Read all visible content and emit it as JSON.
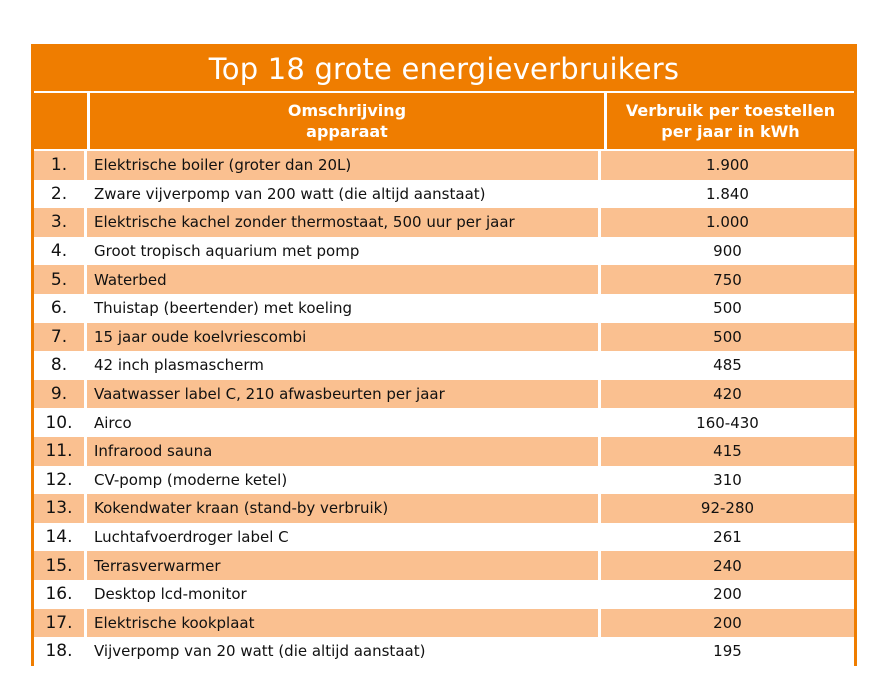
{
  "title": "Top 18 grote energieverbruikers",
  "header": {
    "col_desc_line1": "Omschrijving",
    "col_desc_line2": "apparaat",
    "col_val_line1": "Verbruik per toestellen",
    "col_val_line2": "per jaar in kWh"
  },
  "colors": {
    "accent": "#ef7d00",
    "stripe": "#fac090"
  },
  "rows": [
    {
      "num": "1.",
      "desc": "Elektrische boiler (groter dan 20L)",
      "val": "1.900"
    },
    {
      "num": "2.",
      "desc": "Zware vijverpomp van 200 watt (die altijd aanstaat)",
      "val": "1.840"
    },
    {
      "num": "3.",
      "desc": "Elektrische kachel zonder thermostaat, 500 uur per jaar",
      "val": "1.000"
    },
    {
      "num": "4.",
      "desc": "Groot tropisch aquarium met pomp",
      "val": "900"
    },
    {
      "num": "5.",
      "desc": "Waterbed",
      "val": "750"
    },
    {
      "num": "6.",
      "desc": "Thuistap (beertender) met koeling",
      "val": "500"
    },
    {
      "num": "7.",
      "desc": "15 jaar oude koelvriescombi",
      "val": "500"
    },
    {
      "num": "8.",
      "desc": "42 inch plasmascherm",
      "val": "485"
    },
    {
      "num": "9.",
      "desc": "Vaatwasser label C, 210 afwasbeurten per jaar",
      "val": "420"
    },
    {
      "num": "10.",
      "desc": "Airco",
      "val": "160-430"
    },
    {
      "num": "11.",
      "desc": "Infrarood sauna",
      "val": "415"
    },
    {
      "num": "12.",
      "desc": "CV-pomp (moderne ketel)",
      "val": "310"
    },
    {
      "num": "13.",
      "desc": "Kokendwater kraan (stand-by verbruik)",
      "val": "92-280"
    },
    {
      "num": "14.",
      "desc": "Luchtafvoerdroger label C",
      "val": "261"
    },
    {
      "num": "15.",
      "desc": "Terrasverwarmer",
      "val": "240"
    },
    {
      "num": "16.",
      "desc": "Desktop lcd-monitor",
      "val": "200"
    },
    {
      "num": "17.",
      "desc": "Elektrische kookplaat",
      "val": "200"
    },
    {
      "num": "18.",
      "desc": "Vijverpomp van 20 watt (die altijd aanstaat)",
      "val": "195"
    }
  ]
}
